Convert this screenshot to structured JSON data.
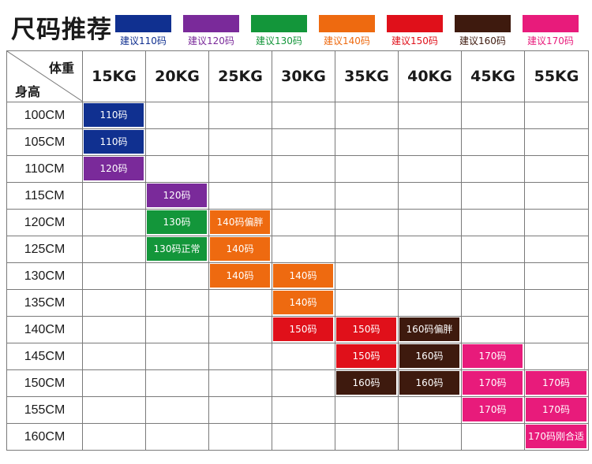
{
  "title": "尺码推荐",
  "legend": [
    {
      "label": "建议110码",
      "color": "#103090"
    },
    {
      "label": "建议120码",
      "color": "#7a2a9a"
    },
    {
      "label": "建议130码",
      "color": "#13963a"
    },
    {
      "label": "建议140码",
      "color": "#ee6a10"
    },
    {
      "label": "建议150码",
      "color": "#e0101a"
    },
    {
      "label": "建议160码",
      "color": "#3e1a0e"
    },
    {
      "label": "建议170码",
      "color": "#e81b7b"
    }
  ],
  "table": {
    "corner_weight": "体重",
    "corner_height": "身高",
    "weights": [
      "15KG",
      "20KG",
      "25KG",
      "30KG",
      "35KG",
      "40KG",
      "45KG",
      "55KG"
    ],
    "rows": [
      {
        "height": "100CM",
        "cells": [
          {
            "text": "110码",
            "color": "#103090"
          },
          null,
          null,
          null,
          null,
          null,
          null,
          null
        ]
      },
      {
        "height": "105CM",
        "cells": [
          {
            "text": "110码",
            "color": "#103090"
          },
          null,
          null,
          null,
          null,
          null,
          null,
          null
        ]
      },
      {
        "height": "110CM",
        "cells": [
          {
            "text": "120码",
            "color": "#7a2a9a"
          },
          null,
          null,
          null,
          null,
          null,
          null,
          null
        ]
      },
      {
        "height": "115CM",
        "cells": [
          null,
          {
            "text": "120码",
            "color": "#7a2a9a"
          },
          null,
          null,
          null,
          null,
          null,
          null
        ]
      },
      {
        "height": "120CM",
        "cells": [
          null,
          {
            "text": "130码",
            "color": "#13963a"
          },
          {
            "text": "140码偏胖",
            "color": "#ee6a10"
          },
          null,
          null,
          null,
          null,
          null
        ]
      },
      {
        "height": "125CM",
        "cells": [
          null,
          {
            "text": "130码正常",
            "color": "#13963a"
          },
          {
            "text": "140码",
            "color": "#ee6a10"
          },
          null,
          null,
          null,
          null,
          null
        ]
      },
      {
        "height": "130CM",
        "cells": [
          null,
          null,
          {
            "text": "140码",
            "color": "#ee6a10"
          },
          {
            "text": "140码",
            "color": "#ee6a10"
          },
          null,
          null,
          null,
          null
        ]
      },
      {
        "height": "135CM",
        "cells": [
          null,
          null,
          null,
          {
            "text": "140码",
            "color": "#ee6a10"
          },
          null,
          null,
          null,
          null
        ]
      },
      {
        "height": "140CM",
        "cells": [
          null,
          null,
          null,
          {
            "text": "150码",
            "color": "#e0101a"
          },
          {
            "text": "150码",
            "color": "#e0101a"
          },
          {
            "text": "160码偏胖",
            "color": "#3e1a0e"
          },
          null,
          null
        ]
      },
      {
        "height": "145CM",
        "cells": [
          null,
          null,
          null,
          null,
          {
            "text": "150码",
            "color": "#e0101a"
          },
          {
            "text": "160码",
            "color": "#3e1a0e"
          },
          {
            "text": "170码",
            "color": "#e81b7b"
          },
          null
        ]
      },
      {
        "height": "150CM",
        "cells": [
          null,
          null,
          null,
          null,
          {
            "text": "160码",
            "color": "#3e1a0e"
          },
          {
            "text": "160码",
            "color": "#3e1a0e"
          },
          {
            "text": "170码",
            "color": "#e81b7b"
          },
          {
            "text": "170码",
            "color": "#e81b7b"
          }
        ]
      },
      {
        "height": "155CM",
        "cells": [
          null,
          null,
          null,
          null,
          null,
          null,
          {
            "text": "170码",
            "color": "#e81b7b"
          },
          {
            "text": "170码",
            "color": "#e81b7b"
          }
        ]
      },
      {
        "height": "160CM",
        "cells": [
          null,
          null,
          null,
          null,
          null,
          null,
          null,
          {
            "text": "170码刚合适",
            "color": "#e81b7b"
          }
        ]
      }
    ]
  }
}
